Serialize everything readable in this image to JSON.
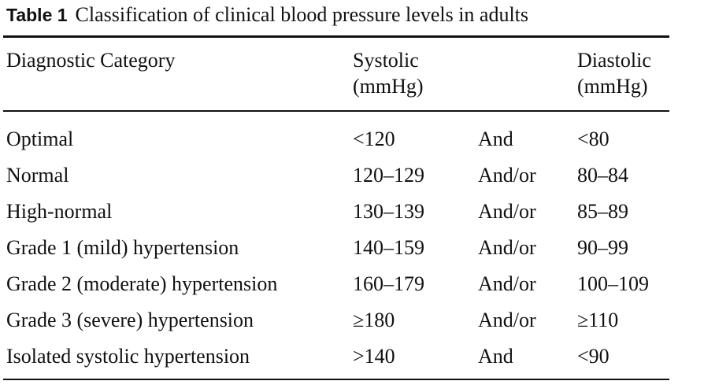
{
  "caption": {
    "label": "Table 1",
    "title": "Classification of clinical blood pressure levels in adults"
  },
  "headers": {
    "category": "Diagnostic Category",
    "systolic_line1": "Systolic",
    "systolic_line2": "(mmHg)",
    "diastolic_line1": "Diastolic",
    "diastolic_line2": "(mmHg)"
  },
  "rows": [
    {
      "category": "Optimal",
      "systolic": "<120",
      "connector": "And",
      "diastolic": "<80"
    },
    {
      "category": "Normal",
      "systolic": "120–129",
      "connector": "And/or",
      "diastolic": "80–84"
    },
    {
      "category": "High-normal",
      "systolic": "130–139",
      "connector": "And/or",
      "diastolic": "85–89"
    },
    {
      "category": "Grade 1 (mild) hypertension",
      "systolic": "140–159",
      "connector": "And/or",
      "diastolic": "90–99"
    },
    {
      "category": "Grade 2 (moderate) hypertension",
      "systolic": "160–179",
      "connector": "And/or",
      "diastolic": "100–109"
    },
    {
      "category": "Grade 3 (severe) hypertension",
      "systolic": "≥180",
      "connector": "And/or",
      "diastolic": "≥110"
    },
    {
      "category": "Isolated systolic hypertension",
      "systolic": ">140",
      "connector": "And",
      "diastolic": "<90"
    }
  ]
}
